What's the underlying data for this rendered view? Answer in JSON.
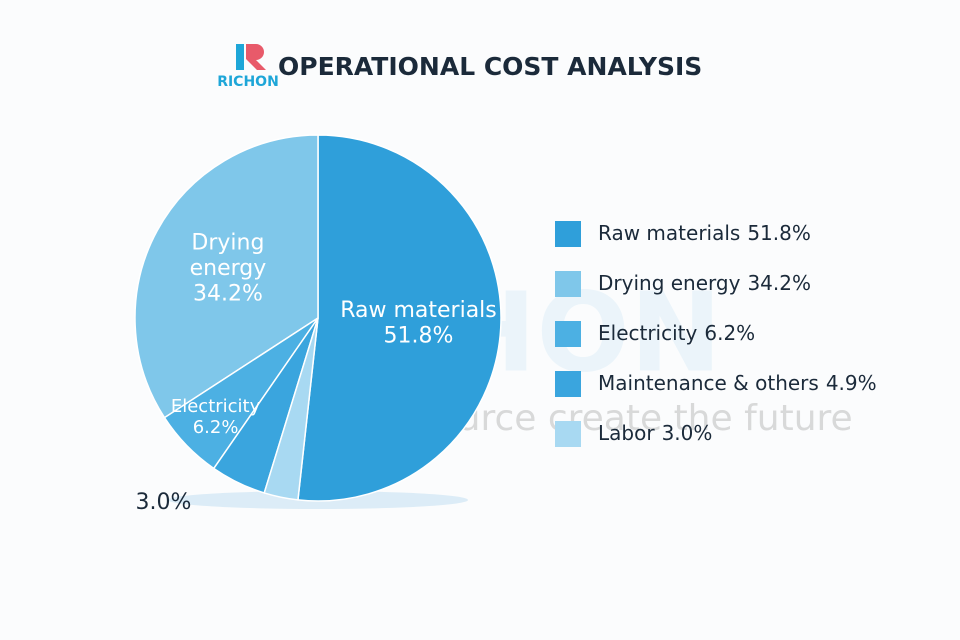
{
  "chart_data": {
    "type": "pie",
    "title": "OPERATIONAL COST ANALYSIS",
    "brand": "RICHON",
    "watermark_tagline": "Resource create the future",
    "categories": [
      "Raw materials",
      "Drying energy",
      "Electricity",
      "Maintenance & others",
      "Labor"
    ],
    "values": [
      51.8,
      34.2,
      6.2,
      4.9,
      3.0
    ],
    "value_labels": [
      "51.8%",
      "34.2%",
      "6.2%",
      "4.9%",
      "3.0%"
    ],
    "slice_labels": [
      [
        "Raw materials"
      ],
      [
        "Drying",
        "energy"
      ],
      [
        "Electricity"
      ],
      null,
      null
    ],
    "show_pie_value": [
      true,
      true,
      true,
      false,
      true
    ],
    "colors": [
      "#2f9fda",
      "#7fc7ea",
      "#4cb0e3",
      "#3aa5de",
      "#a8d9f2"
    ],
    "legend": "right"
  }
}
